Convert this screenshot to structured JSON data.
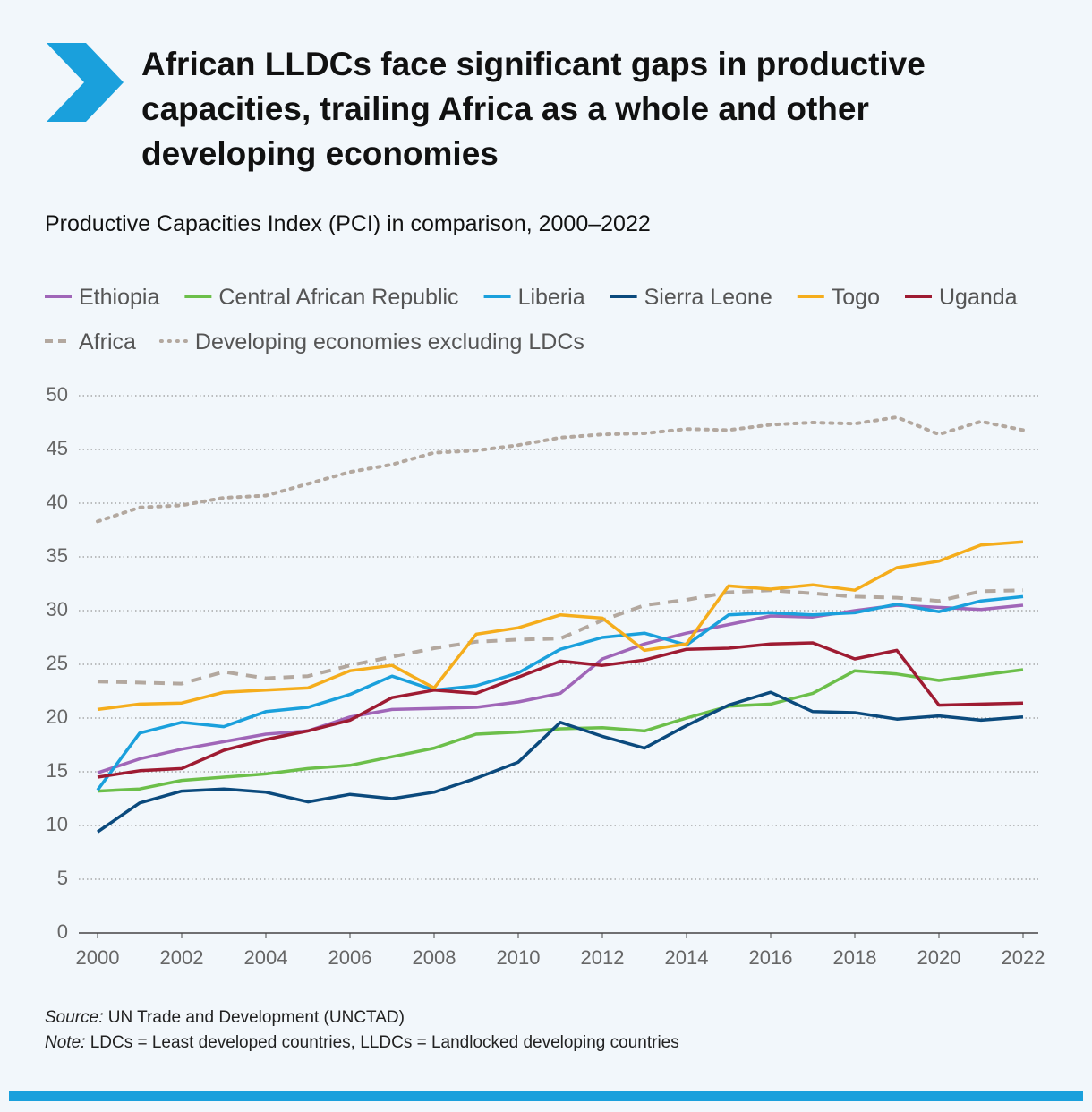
{
  "chart_data": {
    "type": "line",
    "title": "African LLDCs face significant gaps in productive capacities, trailing Africa as a whole and other developing economies",
    "subtitle": "Productive Capacities Index (PCI) in comparison, 2000–2022",
    "source_label": "Source:",
    "source": "UN Trade and Development (UNCTAD)",
    "note_label": "Note:",
    "note": "LDCs = Least developed countries, LLDCs = Landlocked developing countries",
    "x": [
      2000,
      2001,
      2002,
      2003,
      2004,
      2005,
      2006,
      2007,
      2008,
      2009,
      2010,
      2011,
      2012,
      2013,
      2014,
      2015,
      2016,
      2017,
      2018,
      2019,
      2020,
      2021,
      2022
    ],
    "xlim": [
      2000,
      2022
    ],
    "xticks": [
      2000,
      2002,
      2004,
      2006,
      2008,
      2010,
      2012,
      2014,
      2016,
      2018,
      2020,
      2022
    ],
    "ylim": [
      0,
      50
    ],
    "yticks": [
      0,
      5,
      10,
      15,
      20,
      25,
      30,
      35,
      40,
      45,
      50
    ],
    "grid": true,
    "series": [
      {
        "name": "Ethiopia",
        "color": "#a066b8",
        "style": "solid",
        "values": [
          14.9,
          16.2,
          17.1,
          17.8,
          18.5,
          18.8,
          20.1,
          20.8,
          20.9,
          21.0,
          21.5,
          22.3,
          25.5,
          26.9,
          27.9,
          28.7,
          29.5,
          29.4,
          30.0,
          30.5,
          30.3,
          30.1,
          30.5
        ]
      },
      {
        "name": "Central African Republic",
        "color": "#6cbf4a",
        "style": "solid",
        "values": [
          13.2,
          13.4,
          14.2,
          14.5,
          14.8,
          15.3,
          15.6,
          16.4,
          17.2,
          18.5,
          18.7,
          19.0,
          19.1,
          18.8,
          20.0,
          21.1,
          21.3,
          22.3,
          24.4,
          24.1,
          23.5,
          24.0,
          24.5
        ]
      },
      {
        "name": "Liberia",
        "color": "#1aa0dc",
        "style": "solid",
        "values": [
          13.3,
          18.6,
          19.6,
          19.2,
          20.6,
          21.0,
          22.2,
          23.9,
          22.6,
          23.0,
          24.2,
          26.4,
          27.5,
          27.9,
          26.8,
          29.6,
          29.8,
          29.6,
          29.8,
          30.6,
          29.9,
          30.9,
          31.3
        ]
      },
      {
        "name": "Sierra Leone",
        "color": "#0b4a7d",
        "style": "solid",
        "values": [
          9.4,
          12.1,
          13.2,
          13.4,
          13.1,
          12.2,
          12.9,
          12.5,
          13.1,
          14.4,
          15.9,
          19.6,
          18.3,
          17.2,
          19.3,
          21.2,
          22.4,
          20.6,
          20.5,
          19.9,
          20.2,
          19.8,
          20.1
        ]
      },
      {
        "name": "Togo",
        "color": "#f5ad1c",
        "style": "solid",
        "values": [
          20.8,
          21.3,
          21.4,
          22.4,
          22.6,
          22.8,
          24.4,
          24.9,
          22.8,
          27.8,
          28.4,
          29.6,
          29.3,
          26.3,
          26.9,
          32.3,
          32.0,
          32.4,
          31.9,
          34.0,
          34.6,
          36.1,
          36.4
        ]
      },
      {
        "name": "Uganda",
        "color": "#9e1b32",
        "style": "solid",
        "values": [
          14.5,
          15.1,
          15.3,
          17.0,
          18.0,
          18.8,
          19.8,
          21.9,
          22.6,
          22.3,
          23.8,
          25.3,
          24.9,
          25.4,
          26.4,
          26.5,
          26.9,
          27.0,
          25.5,
          26.3,
          21.2,
          21.3,
          21.4
        ]
      },
      {
        "name": "Africa",
        "color": "#b3a89f",
        "style": "dashed",
        "values": [
          23.4,
          23.3,
          23.2,
          24.3,
          23.7,
          23.9,
          24.9,
          25.7,
          26.5,
          27.1,
          27.3,
          27.4,
          29.1,
          30.5,
          31.0,
          31.7,
          31.9,
          31.6,
          31.3,
          31.2,
          30.9,
          31.8,
          31.9
        ]
      },
      {
        "name": "Developing economies excluding LDCs",
        "color": "#b3a89f",
        "style": "dotted",
        "values": [
          38.3,
          39.6,
          39.8,
          40.5,
          40.7,
          41.8,
          42.9,
          43.6,
          44.7,
          44.9,
          45.4,
          46.1,
          46.4,
          46.5,
          46.9,
          46.8,
          47.3,
          47.5,
          47.4,
          48.0,
          46.4,
          47.6,
          46.8
        ]
      }
    ]
  }
}
